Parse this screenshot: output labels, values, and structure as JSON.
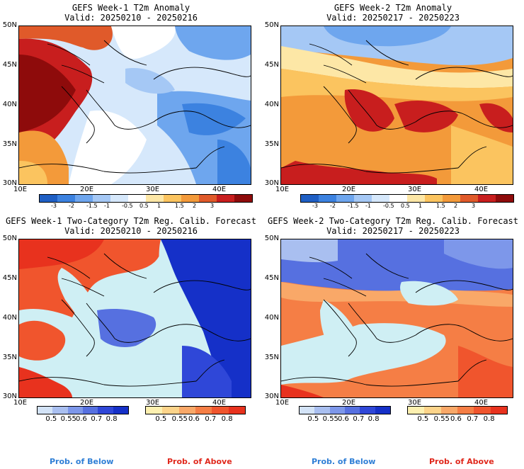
{
  "panels": [
    {
      "title1": "GEFS Week-1 T2m Anomaly",
      "title2": "Valid: 20250210 - 20250216",
      "kind": "anom",
      "lats": [
        "50N",
        "45N",
        "40N",
        "35N",
        "30N"
      ],
      "lons": [
        "10E",
        "20E",
        "30E",
        "40E"
      ]
    },
    {
      "title1": "GEFS Week-2 T2m Anomaly",
      "title2": "Valid: 20250217 - 20250223",
      "kind": "anom",
      "lats": [
        "50N",
        "45N",
        "40N",
        "35N",
        "30N"
      ],
      "lons": [
        "10E",
        "20E",
        "30E",
        "40E"
      ]
    },
    {
      "title1": "GEFS Week-1 Two-Category T2m Reg. Calib. Forecast",
      "title2": "Valid: 20250210 - 20250216",
      "kind": "prob",
      "lats": [
        "50N",
        "45N",
        "40N",
        "35N",
        "30N"
      ],
      "lons": [
        "10E",
        "20E",
        "30E",
        "40E"
      ]
    },
    {
      "title1": "GEFS Week-2 Two-Category T2m Reg. Calib. Forecast",
      "title2": "Valid: 20250217 - 20250223",
      "kind": "prob",
      "lats": [
        "50N",
        "45N",
        "40N",
        "35N",
        "30N"
      ],
      "lons": [
        "10E",
        "20E",
        "30E",
        "40E"
      ]
    }
  ],
  "anomaly_colorbar": {
    "labels": [
      "-3",
      "-2",
      "-1.5",
      "-1",
      "-0.5",
      "0.5",
      "1",
      "1.5",
      "2",
      "3"
    ],
    "colors": [
      "#1f5fc4",
      "#3c82e0",
      "#6ea6ee",
      "#a5c8f5",
      "#d6e8fb",
      "#ffffff",
      "#fde7a6",
      "#fbc45f",
      "#f39a3a",
      "#e05a2a",
      "#c81e1e",
      "#8e0b0b"
    ]
  },
  "prob_below_colorbar": {
    "labels": [
      "0.5",
      "0.55",
      "0.6",
      "0.7",
      "0.8"
    ],
    "colors": [
      "#d3e3f7",
      "#a9bff0",
      "#7d97ea",
      "#5670e0",
      "#2f47d8",
      "#1530c8"
    ]
  },
  "prob_above_colorbar": {
    "labels": [
      "0.5",
      "0.55",
      "0.6",
      "0.7",
      "0.8"
    ],
    "colors": [
      "#fdf0b0",
      "#fcd48a",
      "#f9a868",
      "#f57e45",
      "#f0552d",
      "#e8321e"
    ]
  },
  "legend": {
    "below": "Prob. of Below",
    "above": "Prob. of Above"
  },
  "colors": {
    "below_text": "#2f7fd6",
    "above_text": "#e0281c",
    "sea": "#cfeff4",
    "neutral": "#ffffff"
  }
}
